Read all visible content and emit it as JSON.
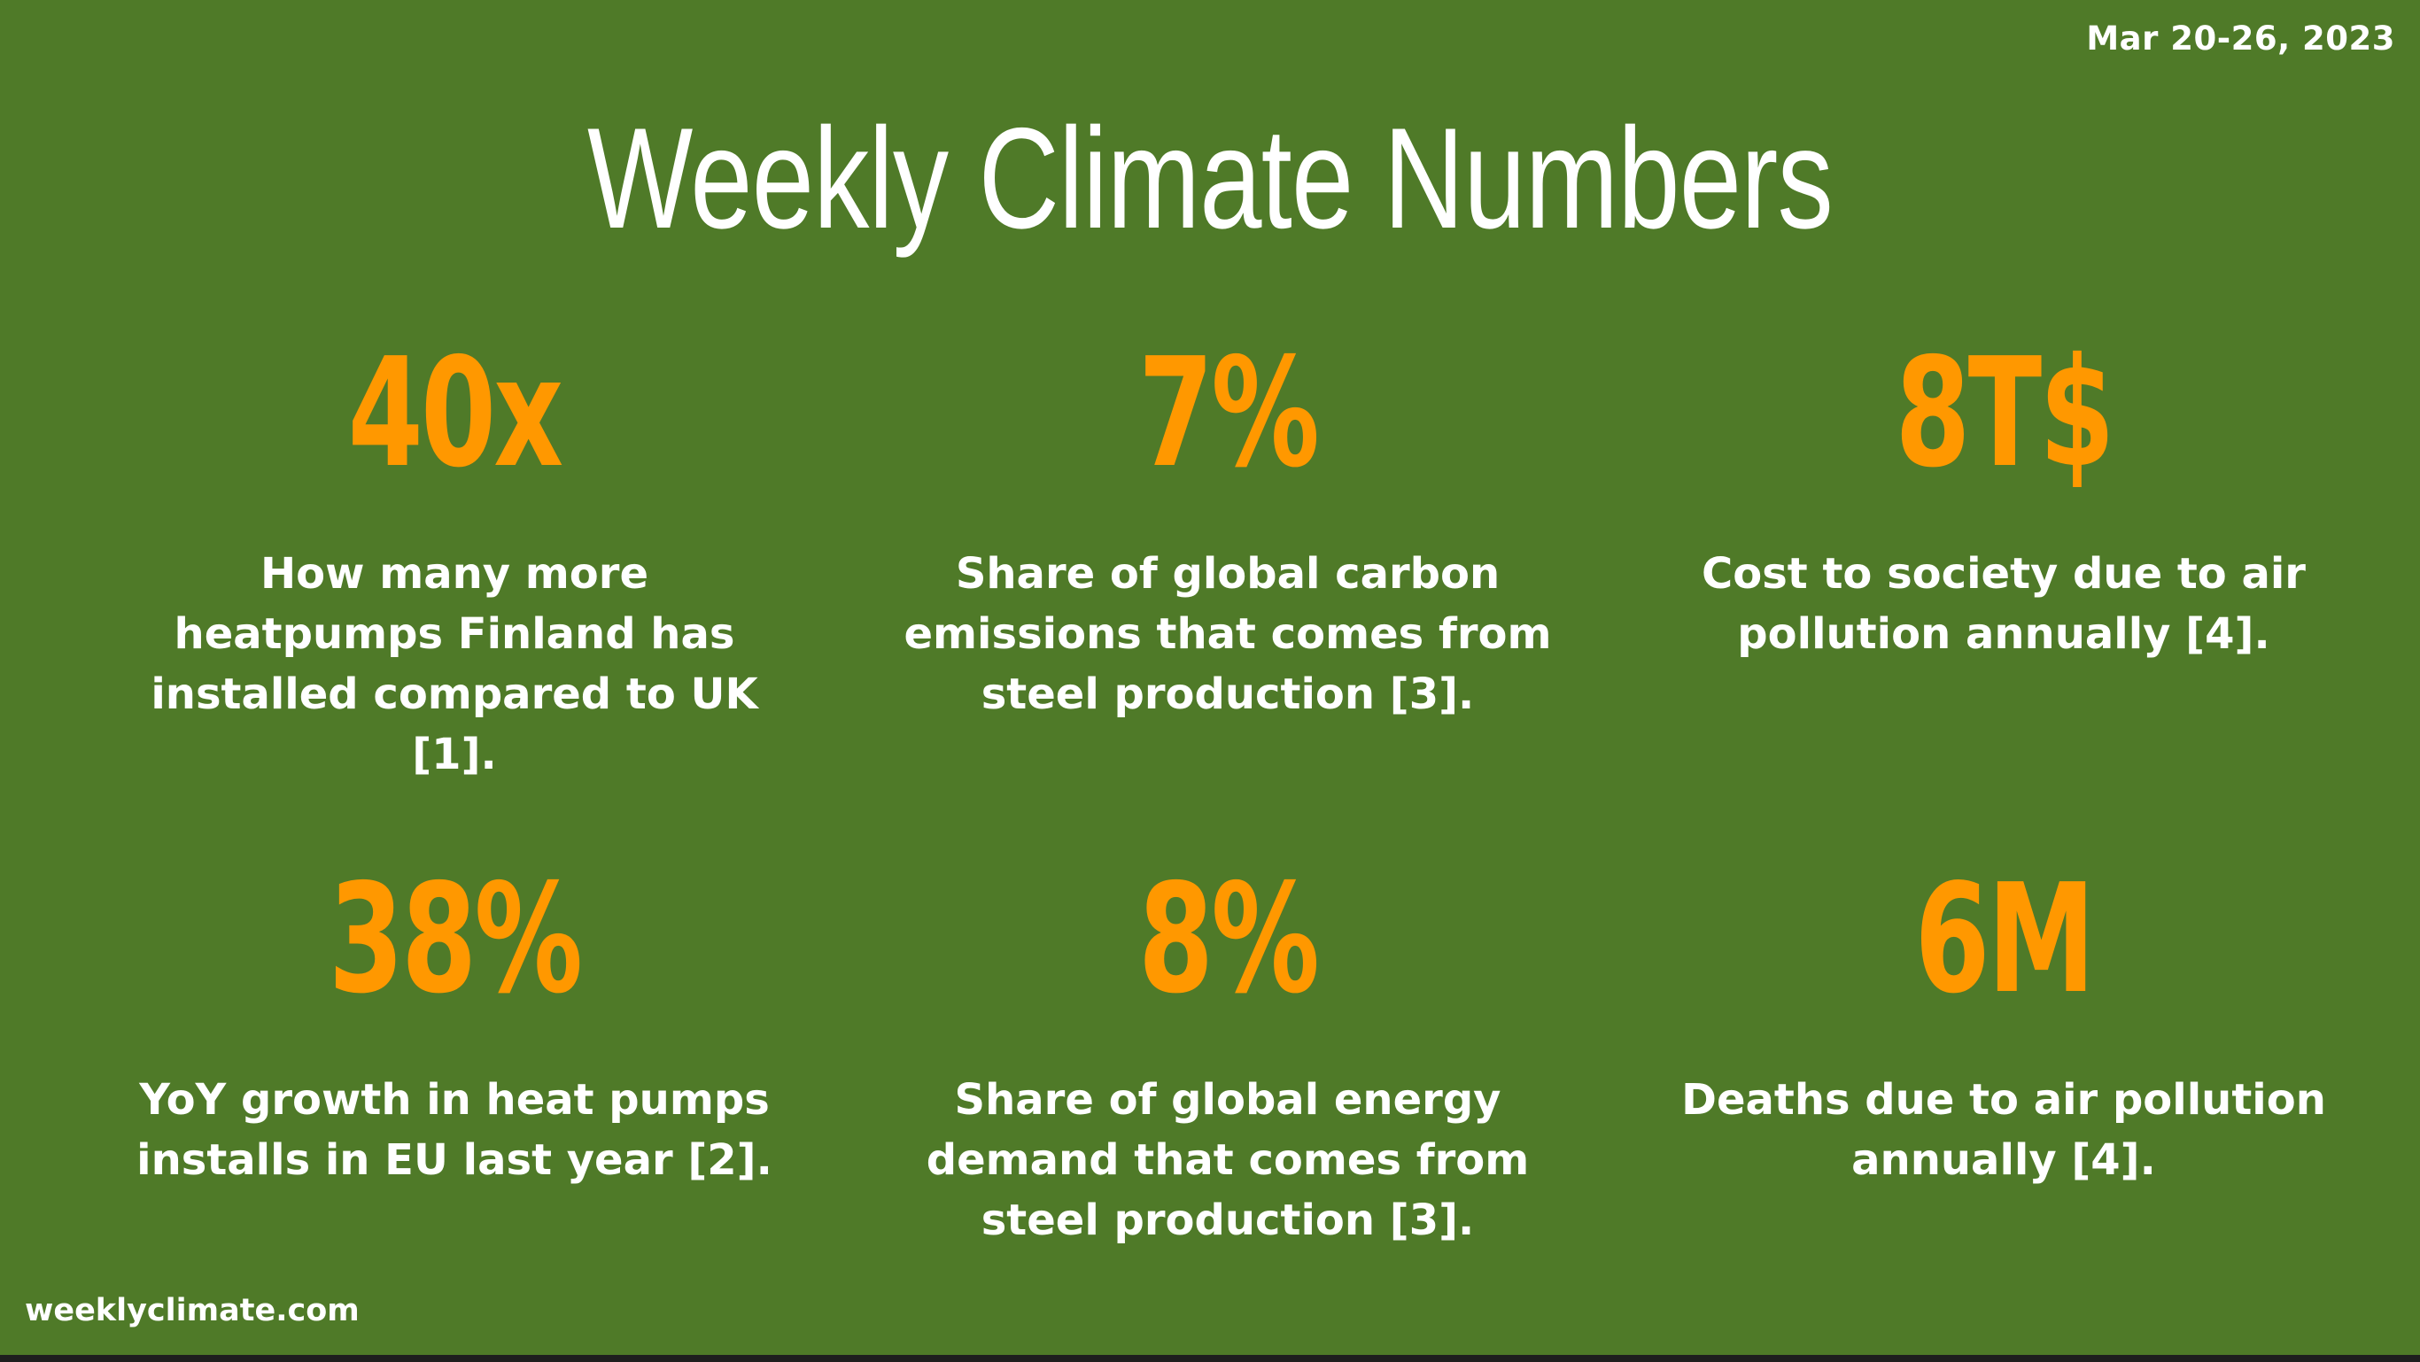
{
  "header": {
    "date_range": "Mar 20-26, 2023",
    "title": "Weekly Climate Numbers"
  },
  "stats": [
    {
      "value": "40x",
      "description": "How many more heatpumps Finland has installed compared to UK [1]."
    },
    {
      "value": "7%",
      "description": "Share of global carbon emissions that comes from steel production [3]."
    },
    {
      "value": "8T$",
      "description": "Cost to society due to air pollution annually [4]."
    },
    {
      "value": "38%",
      "description": "YoY growth in heat pumps installs in EU last year [2]."
    },
    {
      "value": "8%",
      "description": "Share of global energy demand that comes from steel production [3]."
    },
    {
      "value": "6M",
      "description": "Deaths due to air pollution annually [4]."
    }
  ],
  "footer": {
    "site": "weeklyclimate.com"
  },
  "colors": {
    "background": "#4f7a28",
    "accent": "#ff9800",
    "text": "#ffffff"
  }
}
